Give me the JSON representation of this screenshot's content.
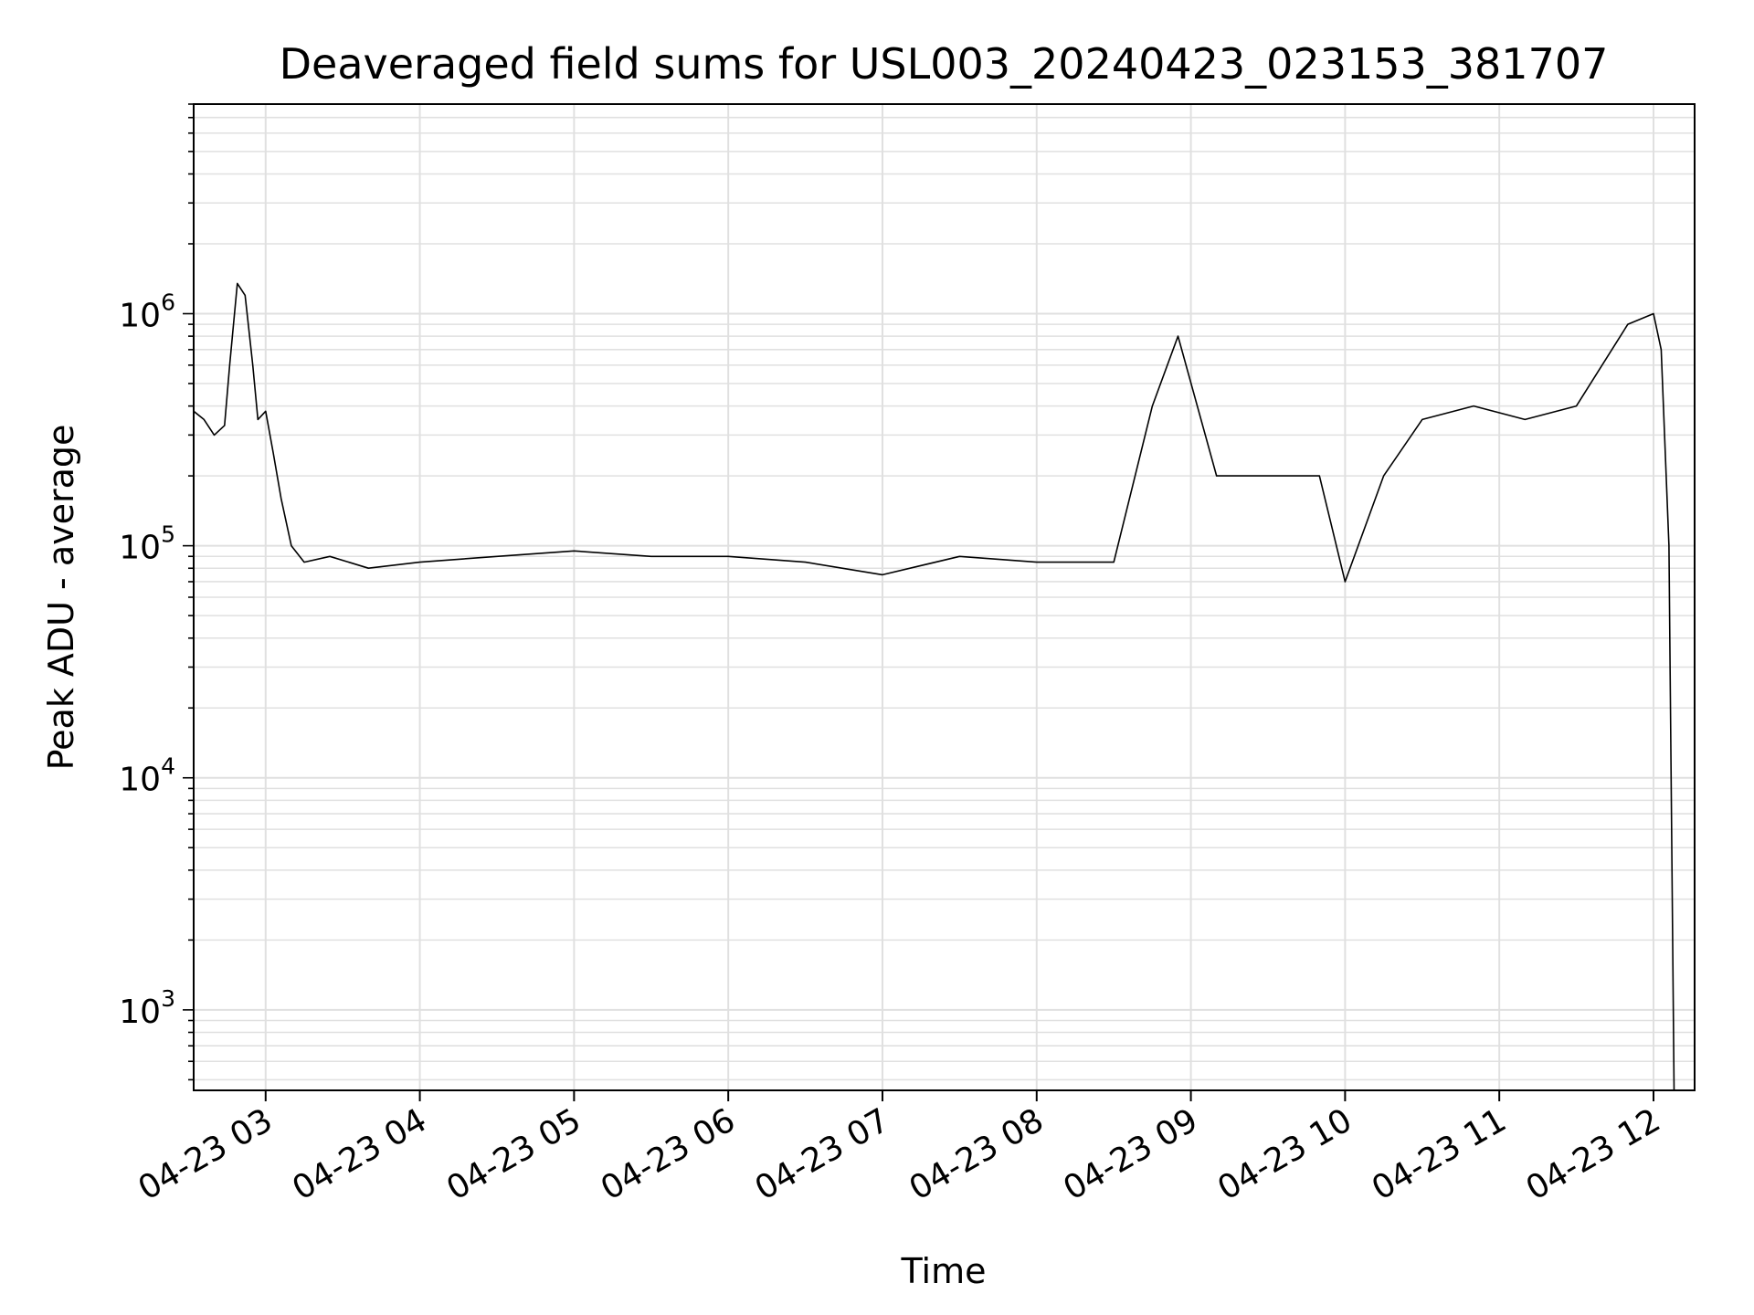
{
  "chart_data": {
    "type": "line",
    "title": "Deaveraged field sums for USL003_20240423_023153_381707",
    "xlabel": "Time",
    "ylabel": "Peak ADU - average",
    "yscale": "log",
    "ylim": [
      450,
      8000000
    ],
    "xlim": [
      "04-23 02:32",
      "04-23 12:16"
    ],
    "grid": true,
    "line_color": "#000000",
    "grid_color": "#e0e0e0",
    "x_ticks": [
      "04-23 03",
      "04-23 04",
      "04-23 05",
      "04-23 06",
      "04-23 07",
      "04-23 08",
      "04-23 09",
      "04-23 10",
      "04-23 11",
      "04-23 12"
    ],
    "y_ticks": [
      {
        "value": 1000,
        "base": "10",
        "exp": "3"
      },
      {
        "value": 10000,
        "base": "10",
        "exp": "4"
      },
      {
        "value": 100000,
        "base": "10",
        "exp": "5"
      },
      {
        "value": 1000000,
        "base": "10",
        "exp": "6"
      }
    ],
    "series": [
      {
        "points": [
          [
            "04-23 02:32",
            380000
          ],
          [
            "04-23 02:36",
            350000
          ],
          [
            "04-23 02:40",
            300000
          ],
          [
            "04-23 02:44",
            330000
          ],
          [
            "04-23 02:46",
            600000
          ],
          [
            "04-23 02:49",
            1350000
          ],
          [
            "04-23 02:52",
            1200000
          ],
          [
            "04-23 02:55",
            600000
          ],
          [
            "04-23 02:57",
            350000
          ],
          [
            "04-23 03:00",
            380000
          ],
          [
            "04-23 03:03",
            250000
          ],
          [
            "04-23 03:06",
            160000
          ],
          [
            "04-23 03:10",
            100000
          ],
          [
            "04-23 03:15",
            85000
          ],
          [
            "04-23 03:25",
            90000
          ],
          [
            "04-23 03:40",
            80000
          ],
          [
            "04-23 04:00",
            85000
          ],
          [
            "04-23 04:30",
            90000
          ],
          [
            "04-23 05:00",
            95000
          ],
          [
            "04-23 05:30",
            90000
          ],
          [
            "04-23 06:00",
            90000
          ],
          [
            "04-23 06:30",
            85000
          ],
          [
            "04-23 07:00",
            75000
          ],
          [
            "04-23 07:30",
            90000
          ],
          [
            "04-23 08:00",
            85000
          ],
          [
            "04-23 08:30",
            85000
          ],
          [
            "04-23 08:45",
            400000
          ],
          [
            "04-23 08:55",
            800000
          ],
          [
            "04-23 09:10",
            200000
          ],
          [
            "04-23 09:30",
            200000
          ],
          [
            "04-23 09:50",
            200000
          ],
          [
            "04-23 10:00",
            70000
          ],
          [
            "04-23 10:15",
            200000
          ],
          [
            "04-23 10:30",
            350000
          ],
          [
            "04-23 10:50",
            400000
          ],
          [
            "04-23 11:10",
            350000
          ],
          [
            "04-23 11:30",
            400000
          ],
          [
            "04-23 11:50",
            900000
          ],
          [
            "04-23 12:00",
            1000000
          ],
          [
            "04-23 12:03",
            700000
          ],
          [
            "04-23 12:06",
            100000
          ],
          [
            "04-23 12:08",
            450
          ]
        ]
      }
    ]
  }
}
